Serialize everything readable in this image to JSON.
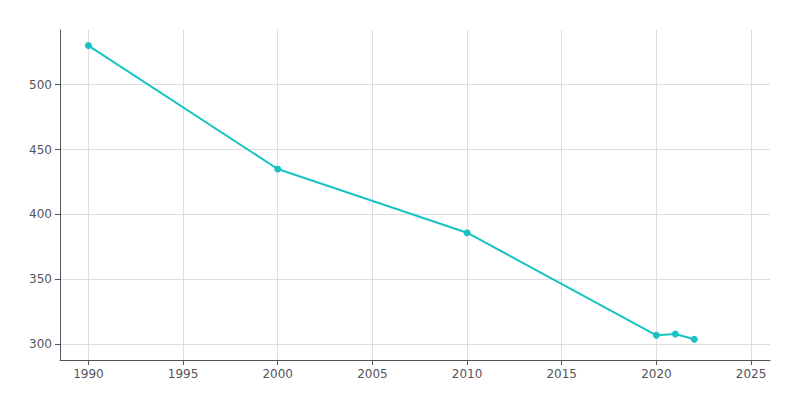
{
  "chart_data": {
    "type": "line",
    "x": [
      1990,
      2000,
      2010,
      2020,
      2021,
      2022
    ],
    "values": [
      530,
      435,
      386,
      307,
      308,
      304
    ],
    "color": "#17c3c3",
    "marker": "circle",
    "xlim": [
      1988.5,
      2026
    ],
    "xticks": [
      1990,
      1995,
      2000,
      2005,
      2010,
      2015,
      2020,
      2025
    ],
    "ylim": [
      288,
      542
    ],
    "yticks": [
      300,
      350,
      400,
      450,
      500
    ],
    "grid": true
  }
}
